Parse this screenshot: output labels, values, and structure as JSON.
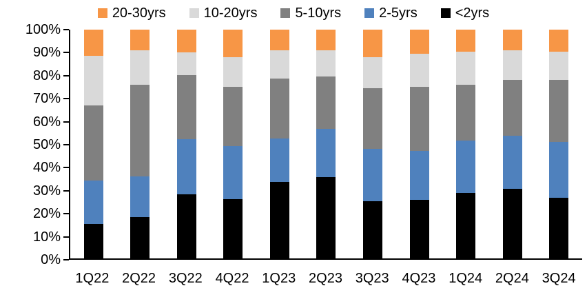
{
  "chart_data": {
    "type": "bar",
    "stacked": true,
    "percent_stacked": true,
    "title": "",
    "xlabel": "",
    "ylabel": "",
    "ylim": [
      0,
      100
    ],
    "grid": false,
    "legend_position": "top",
    "categories": [
      "1Q22",
      "2Q22",
      "3Q22",
      "4Q22",
      "1Q23",
      "2Q23",
      "3Q23",
      "4Q23",
      "1Q24",
      "2Q24",
      "3Q24"
    ],
    "series": [
      {
        "name": "<2yrs",
        "color": "#000000",
        "values": [
          15.0,
          18.0,
          28.0,
          26.0,
          33.5,
          35.5,
          25.0,
          25.5,
          28.5,
          30.5,
          26.5
        ]
      },
      {
        "name": "2-5yrs",
        "color": "#4F81BD",
        "values": [
          19.0,
          18.0,
          24.0,
          23.0,
          19.0,
          21.0,
          23.0,
          21.5,
          23.0,
          23.0,
          24.5
        ]
      },
      {
        "name": "5-10yrs",
        "color": "#808080",
        "values": [
          33.0,
          40.0,
          28.0,
          26.0,
          26.0,
          23.0,
          26.5,
          28.0,
          24.5,
          24.5,
          27.0
        ]
      },
      {
        "name": "10-20yrs",
        "color": "#D9D9D9",
        "values": [
          21.5,
          15.0,
          10.0,
          13.0,
          12.5,
          11.5,
          13.5,
          14.5,
          14.5,
          13.0,
          12.5
        ]
      },
      {
        "name": "20-30yrs",
        "color": "#F79646",
        "values": [
          11.5,
          9.0,
          10.0,
          12.0,
          9.0,
          9.0,
          12.0,
          10.5,
          9.5,
          9.0,
          9.5
        ]
      }
    ],
    "legend_order": [
      "20-30yrs",
      "10-20yrs",
      "5-10yrs",
      "2-5yrs",
      "<2yrs"
    ],
    "y_ticks": [
      "100%",
      "90%",
      "80%",
      "70%",
      "60%",
      "50%",
      "40%",
      "30%",
      "20%",
      "10%",
      "0%"
    ],
    "axis_color": "#000000"
  }
}
